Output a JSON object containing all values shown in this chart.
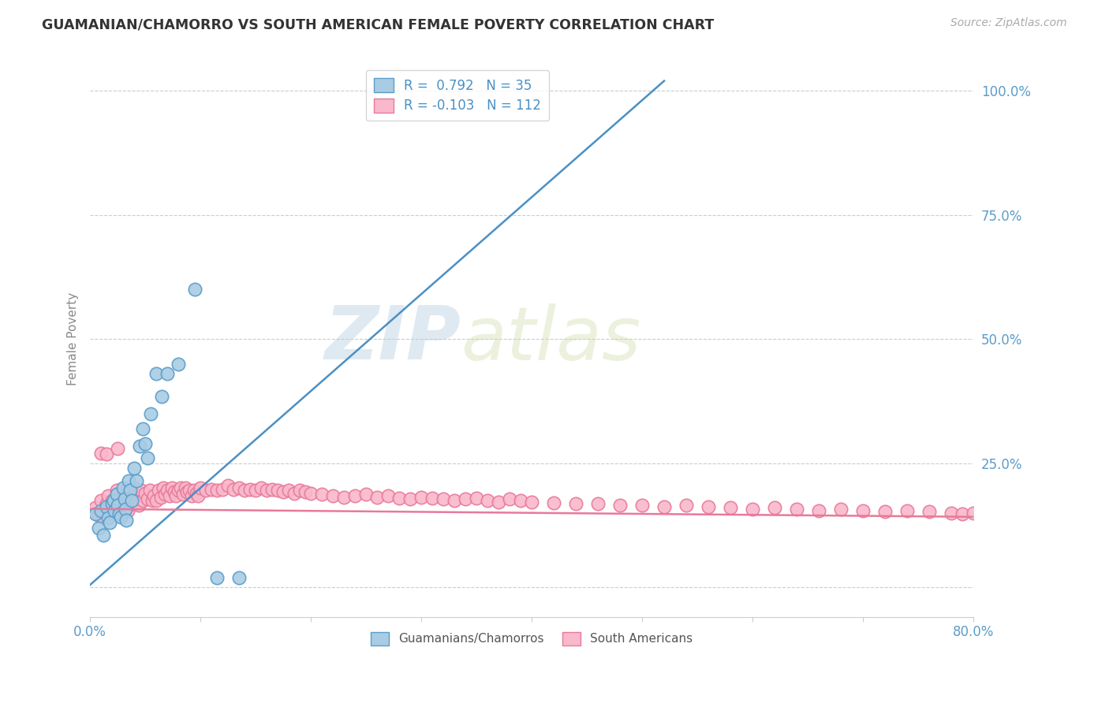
{
  "title": "GUAMANIAN/CHAMORRO VS SOUTH AMERICAN FEMALE POVERTY CORRELATION CHART",
  "source": "Source: ZipAtlas.com",
  "ylabel": "Female Poverty",
  "xlim": [
    0.0,
    0.8
  ],
  "ylim": [
    -0.06,
    1.06
  ],
  "xticks": [
    0.0,
    0.1,
    0.2,
    0.3,
    0.4,
    0.5,
    0.6,
    0.7,
    0.8
  ],
  "xticklabels": [
    "0.0%",
    "",
    "",
    "",
    "",
    "",
    "",
    "",
    "80.0%"
  ],
  "yticks": [
    0.0,
    0.25,
    0.5,
    0.75,
    1.0
  ],
  "yticklabels": [
    "",
    "25.0%",
    "50.0%",
    "75.0%",
    "100.0%"
  ],
  "blue_R": 0.792,
  "blue_N": 35,
  "pink_R": -0.103,
  "pink_N": 112,
  "blue_color": "#a8cce4",
  "pink_color": "#f9b8cb",
  "blue_edge_color": "#5b9dc9",
  "pink_edge_color": "#e8799a",
  "blue_line_color": "#4a90c4",
  "pink_line_color": "#e8799a",
  "watermark_zip": "ZIP",
  "watermark_atlas": "atlas",
  "legend_label_blue": "Guamanians/Chamorros",
  "legend_label_pink": "South Americans",
  "blue_line_x": [
    0.0,
    0.52
  ],
  "blue_line_y": [
    0.005,
    1.02
  ],
  "pink_line_x": [
    0.0,
    0.8
  ],
  "pink_line_y": [
    0.158,
    0.142
  ],
  "blue_scatter_x": [
    0.005,
    0.008,
    0.01,
    0.012,
    0.015,
    0.016,
    0.018,
    0.02,
    0.021,
    0.022,
    0.024,
    0.025,
    0.026,
    0.028,
    0.03,
    0.031,
    0.032,
    0.033,
    0.035,
    0.036,
    0.038,
    0.04,
    0.042,
    0.045,
    0.048,
    0.05,
    0.052,
    0.055,
    0.06,
    0.065,
    0.07,
    0.08,
    0.095,
    0.115,
    0.135
  ],
  "blue_scatter_y": [
    0.148,
    0.12,
    0.155,
    0.105,
    0.162,
    0.14,
    0.13,
    0.168,
    0.175,
    0.155,
    0.188,
    0.165,
    0.148,
    0.142,
    0.2,
    0.178,
    0.158,
    0.135,
    0.215,
    0.195,
    0.175,
    0.24,
    0.215,
    0.285,
    0.32,
    0.29,
    0.26,
    0.35,
    0.43,
    0.385,
    0.43,
    0.45,
    0.6,
    0.02,
    0.02
  ],
  "pink_scatter_x": [
    0.005,
    0.008,
    0.01,
    0.012,
    0.015,
    0.016,
    0.018,
    0.02,
    0.022,
    0.024,
    0.026,
    0.028,
    0.03,
    0.032,
    0.034,
    0.035,
    0.036,
    0.038,
    0.04,
    0.042,
    0.044,
    0.046,
    0.048,
    0.05,
    0.052,
    0.054,
    0.056,
    0.058,
    0.06,
    0.062,
    0.064,
    0.066,
    0.068,
    0.07,
    0.072,
    0.074,
    0.076,
    0.078,
    0.08,
    0.082,
    0.084,
    0.086,
    0.088,
    0.09,
    0.092,
    0.094,
    0.096,
    0.098,
    0.1,
    0.105,
    0.11,
    0.115,
    0.12,
    0.125,
    0.13,
    0.135,
    0.14,
    0.145,
    0.15,
    0.155,
    0.16,
    0.165,
    0.17,
    0.175,
    0.18,
    0.185,
    0.19,
    0.195,
    0.2,
    0.21,
    0.22,
    0.23,
    0.24,
    0.25,
    0.26,
    0.27,
    0.28,
    0.29,
    0.3,
    0.31,
    0.32,
    0.33,
    0.34,
    0.35,
    0.36,
    0.37,
    0.38,
    0.39,
    0.4,
    0.42,
    0.44,
    0.46,
    0.48,
    0.5,
    0.52,
    0.54,
    0.56,
    0.58,
    0.6,
    0.62,
    0.64,
    0.66,
    0.68,
    0.7,
    0.72,
    0.74,
    0.76,
    0.78,
    0.79,
    0.8,
    0.01,
    0.015,
    0.025
  ],
  "pink_scatter_y": [
    0.16,
    0.145,
    0.175,
    0.14,
    0.168,
    0.185,
    0.155,
    0.175,
    0.16,
    0.195,
    0.155,
    0.148,
    0.18,
    0.162,
    0.155,
    0.175,
    0.195,
    0.168,
    0.2,
    0.185,
    0.165,
    0.195,
    0.175,
    0.19,
    0.178,
    0.195,
    0.175,
    0.185,
    0.175,
    0.195,
    0.182,
    0.2,
    0.188,
    0.195,
    0.185,
    0.2,
    0.192,
    0.185,
    0.195,
    0.2,
    0.188,
    0.2,
    0.192,
    0.195,
    0.185,
    0.195,
    0.19,
    0.185,
    0.2,
    0.195,
    0.198,
    0.195,
    0.198,
    0.205,
    0.198,
    0.2,
    0.195,
    0.198,
    0.195,
    0.2,
    0.195,
    0.198,
    0.195,
    0.192,
    0.195,
    0.19,
    0.195,
    0.192,
    0.19,
    0.188,
    0.185,
    0.182,
    0.185,
    0.188,
    0.182,
    0.185,
    0.18,
    0.178,
    0.182,
    0.18,
    0.178,
    0.175,
    0.178,
    0.18,
    0.175,
    0.172,
    0.178,
    0.175,
    0.172,
    0.17,
    0.168,
    0.168,
    0.165,
    0.165,
    0.162,
    0.165,
    0.162,
    0.16,
    0.158,
    0.16,
    0.158,
    0.155,
    0.158,
    0.155,
    0.152,
    0.155,
    0.152,
    0.15,
    0.148,
    0.15,
    0.27,
    0.268,
    0.28
  ]
}
